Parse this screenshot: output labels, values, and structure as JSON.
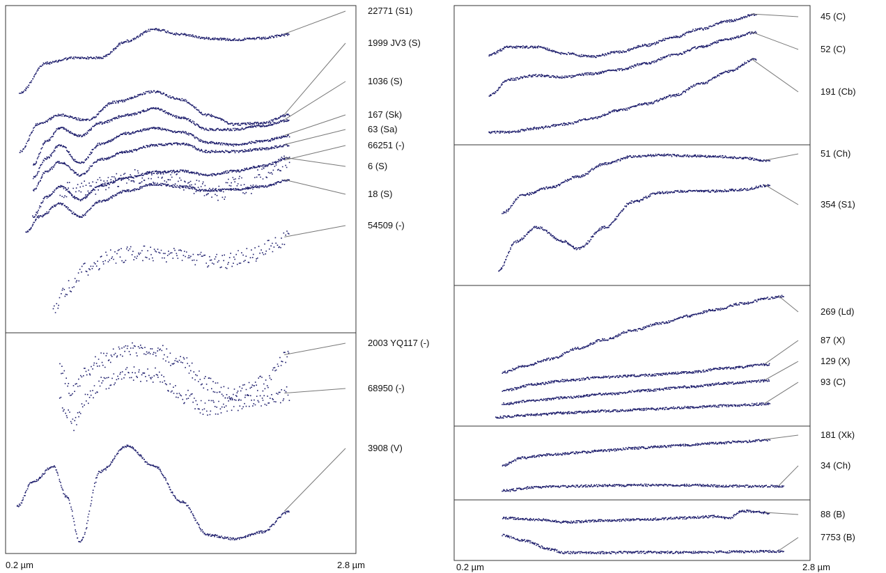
{
  "chart_data": [
    {
      "type": "line",
      "panel": "left-top",
      "xlim": [
        0.2,
        2.8
      ],
      "x_unit": "µm",
      "axis_start_label": "0.2 µm",
      "axis_end_label": "2.8 µm",
      "series": [
        {
          "name": "22771 (S1)",
          "x": [
            0.3,
            0.5,
            0.7,
            0.9,
            1.1,
            1.3,
            1.5,
            1.7,
            1.9,
            2.1,
            2.3
          ],
          "y": [
            0.45,
            0.68,
            0.72,
            0.72,
            0.85,
            0.94,
            0.9,
            0.87,
            0.86,
            0.87,
            0.9
          ]
        },
        {
          "name": "1999 JV3 (S)",
          "x": [
            0.3,
            0.45,
            0.6,
            0.8,
            1.0,
            1.3,
            1.5,
            1.7,
            1.9,
            2.1,
            2.3
          ],
          "y": [
            0.0,
            0.22,
            0.28,
            0.24,
            0.38,
            0.46,
            0.4,
            0.28,
            0.21,
            0.22,
            0.28
          ]
        },
        {
          "name": "1036 (S)",
          "x": [
            0.4,
            0.5,
            0.6,
            0.75,
            0.9,
            1.1,
            1.3,
            1.5,
            1.7,
            1.9,
            2.1,
            2.3
          ],
          "y": [
            -0.1,
            0.08,
            0.18,
            0.12,
            0.22,
            0.28,
            0.33,
            0.26,
            0.17,
            0.17,
            0.2,
            0.24
          ]
        },
        {
          "name": "167 (Sk)",
          "x": [
            0.4,
            0.5,
            0.6,
            0.75,
            0.9,
            1.1,
            1.3,
            1.5,
            1.7,
            1.9,
            2.1,
            2.3
          ],
          "y": [
            -0.2,
            -0.05,
            0.05,
            -0.09,
            0.06,
            0.14,
            0.18,
            0.15,
            0.07,
            0.05,
            0.08,
            0.12
          ]
        },
        {
          "name": "63 (Sa)",
          "x": [
            0.4,
            0.5,
            0.6,
            0.75,
            0.9,
            1.1,
            1.3,
            1.5,
            1.7,
            1.9,
            2.1,
            2.3
          ],
          "y": [
            -0.3,
            -0.15,
            -0.08,
            -0.18,
            -0.06,
            0.0,
            0.05,
            0.06,
            0.0,
            0.0,
            0.02,
            0.05
          ]
        },
        {
          "name": "66251 (-)",
          "x": [
            0.6,
            0.8,
            1.0,
            1.2,
            1.4,
            1.6,
            1.8,
            1.9,
            2.0,
            2.1,
            2.2,
            2.3
          ],
          "y": [
            -0.3,
            -0.28,
            -0.23,
            -0.19,
            -0.21,
            -0.27,
            -0.32,
            -0.22,
            -0.28,
            -0.16,
            -0.12,
            -0.07
          ]
        },
        {
          "name": "6 (S)",
          "x": [
            0.4,
            0.5,
            0.6,
            0.75,
            0.9,
            1.1,
            1.3,
            1.5,
            1.7,
            1.9,
            2.1,
            2.3
          ],
          "y": [
            -0.5,
            -0.35,
            -0.27,
            -0.37,
            -0.26,
            -0.2,
            -0.16,
            -0.15,
            -0.18,
            -0.15,
            -0.11,
            -0.05
          ]
        },
        {
          "name": "18 (S)",
          "x": [
            0.35,
            0.45,
            0.6,
            0.75,
            0.9,
            1.1,
            1.3,
            1.5,
            1.7,
            1.9,
            2.1,
            2.3
          ],
          "y": [
            -0.62,
            -0.5,
            -0.4,
            -0.5,
            -0.38,
            -0.3,
            -0.25,
            -0.27,
            -0.3,
            -0.29,
            -0.27,
            -0.22
          ]
        },
        {
          "name": "54509 (-)",
          "x": [
            0.55,
            0.65,
            0.8,
            1.0,
            1.2,
            1.4,
            1.6,
            1.8,
            2.0,
            2.2,
            2.3
          ],
          "y": [
            -1.2,
            -1.05,
            -0.9,
            -0.8,
            -0.78,
            -0.8,
            -0.82,
            -0.85,
            -0.8,
            -0.72,
            -0.66
          ]
        }
      ]
    },
    {
      "type": "line",
      "panel": "left-bottom",
      "xlim": [
        0.2,
        2.8
      ],
      "x_unit": "µm",
      "series": [
        {
          "name": "2003 YQ117 (-)",
          "x": [
            0.6,
            0.7,
            0.8,
            0.9,
            1.1,
            1.3,
            1.5,
            1.7,
            1.9,
            2.1,
            2.3
          ],
          "y": [
            0.75,
            0.55,
            0.72,
            0.85,
            0.95,
            0.97,
            0.82,
            0.62,
            0.52,
            0.62,
            0.9
          ]
        },
        {
          "name": "68950 (-)",
          "x": [
            0.6,
            0.7,
            0.8,
            0.9,
            1.1,
            1.3,
            1.5,
            1.7,
            1.9,
            2.1,
            2.3
          ],
          "y": [
            0.42,
            0.22,
            0.48,
            0.62,
            0.72,
            0.7,
            0.5,
            0.38,
            0.42,
            0.45,
            0.52
          ]
        },
        {
          "name": "3908 (V)",
          "x": [
            0.28,
            0.4,
            0.55,
            0.65,
            0.75,
            0.9,
            1.1,
            1.3,
            1.5,
            1.7,
            1.9,
            2.1,
            2.3
          ],
          "y": [
            -0.6,
            -0.35,
            -0.2,
            -0.5,
            -0.95,
            -0.25,
            0.0,
            -0.2,
            -0.55,
            -0.88,
            -0.92,
            -0.85,
            -0.65
          ]
        }
      ]
    },
    {
      "type": "line",
      "panel": "right-1",
      "xlim": [
        0.2,
        2.8
      ],
      "x_unit": "µm",
      "series": [
        {
          "name": "45 (C)",
          "x": [
            0.45,
            0.6,
            0.8,
            1.0,
            1.2,
            1.4,
            1.6,
            1.8,
            2.0,
            2.2,
            2.4
          ],
          "y": [
            0.4,
            0.5,
            0.5,
            0.42,
            0.38,
            0.44,
            0.52,
            0.62,
            0.72,
            0.82,
            0.9
          ]
        },
        {
          "name": "52 (C)",
          "x": [
            0.45,
            0.6,
            0.8,
            1.0,
            1.2,
            1.4,
            1.6,
            1.8,
            2.0,
            2.2,
            2.4
          ],
          "y": [
            -0.1,
            0.1,
            0.15,
            0.13,
            0.17,
            0.22,
            0.3,
            0.4,
            0.5,
            0.6,
            0.68
          ]
        },
        {
          "name": "191 (Cb)",
          "x": [
            0.45,
            0.6,
            0.8,
            1.0,
            1.2,
            1.4,
            1.6,
            1.8,
            2.0,
            2.2,
            2.4
          ],
          "y": [
            -0.55,
            -0.55,
            -0.5,
            -0.45,
            -0.38,
            -0.28,
            -0.2,
            -0.1,
            0.05,
            0.2,
            0.35
          ]
        }
      ]
    },
    {
      "type": "line",
      "panel": "right-2",
      "xlim": [
        0.2,
        2.8
      ],
      "x_unit": "µm",
      "series": [
        {
          "name": "51 (Ch)",
          "x": [
            0.55,
            0.7,
            0.9,
            1.1,
            1.3,
            1.5,
            1.7,
            1.9,
            2.1,
            2.3,
            2.5
          ],
          "y": [
            0.1,
            0.35,
            0.45,
            0.6,
            0.78,
            0.88,
            0.9,
            0.89,
            0.88,
            0.86,
            0.82
          ]
        },
        {
          "name": "354 (S1)",
          "x": [
            0.52,
            0.65,
            0.8,
            1.0,
            1.1,
            1.3,
            1.5,
            1.7,
            1.9,
            2.1,
            2.3,
            2.5
          ],
          "y": [
            -0.7,
            -0.3,
            -0.1,
            -0.3,
            -0.4,
            -0.1,
            0.25,
            0.38,
            0.4,
            0.4,
            0.42,
            0.48
          ]
        }
      ]
    },
    {
      "type": "line",
      "panel": "right-3",
      "xlim": [
        0.2,
        2.8
      ],
      "x_unit": "µm",
      "series": [
        {
          "name": "269 (Ld)",
          "x": [
            0.55,
            0.7,
            0.9,
            1.1,
            1.3,
            1.5,
            1.7,
            1.9,
            2.1,
            2.3,
            2.5,
            2.6
          ],
          "y": [
            0.05,
            0.12,
            0.2,
            0.32,
            0.42,
            0.52,
            0.6,
            0.68,
            0.75,
            0.82,
            0.88,
            0.9
          ]
        },
        {
          "name": "87 (X)",
          "x": [
            0.55,
            0.8,
            1.0,
            1.3,
            1.6,
            1.9,
            2.2,
            2.5
          ],
          "y": [
            -0.15,
            -0.08,
            -0.04,
            0.0,
            0.02,
            0.05,
            0.1,
            0.14
          ]
        },
        {
          "name": "129 (X)",
          "x": [
            0.55,
            0.8,
            1.0,
            1.3,
            1.6,
            1.9,
            2.2,
            2.5
          ],
          "y": [
            -0.3,
            -0.26,
            -0.23,
            -0.19,
            -0.15,
            -0.11,
            -0.07,
            -0.04
          ]
        },
        {
          "name": "93 (C)",
          "x": [
            0.5,
            0.8,
            1.0,
            1.3,
            1.6,
            1.9,
            2.2,
            2.5
          ],
          "y": [
            -0.45,
            -0.42,
            -0.4,
            -0.38,
            -0.36,
            -0.34,
            -0.32,
            -0.3
          ]
        }
      ]
    },
    {
      "type": "line",
      "panel": "right-4",
      "xlim": [
        0.2,
        2.8
      ],
      "x_unit": "µm",
      "series": [
        {
          "name": "181 (Xk)",
          "x": [
            0.55,
            0.7,
            0.9,
            1.1,
            1.3,
            1.5,
            1.7,
            1.9,
            2.1,
            2.3,
            2.5
          ],
          "y": [
            0.2,
            0.38,
            0.45,
            0.5,
            0.55,
            0.6,
            0.64,
            0.68,
            0.72,
            0.76,
            0.8
          ]
        },
        {
          "name": "34 (Ch)",
          "x": [
            0.55,
            0.8,
            1.0,
            1.3,
            1.6,
            1.9,
            2.2,
            2.5,
            2.6
          ],
          "y": [
            -0.4,
            -0.32,
            -0.3,
            -0.28,
            -0.27,
            -0.27,
            -0.29,
            -0.3,
            -0.3
          ]
        }
      ]
    },
    {
      "type": "line",
      "panel": "right-5",
      "xlim": [
        0.2,
        2.8
      ],
      "x_unit": "µm",
      "axis_start_label": "0.2 µm",
      "axis_end_label": "2.8 µm",
      "series": [
        {
          "name": "88 (B)",
          "x": [
            0.55,
            0.8,
            1.0,
            1.3,
            1.6,
            1.9,
            2.1,
            2.2,
            2.3,
            2.5
          ],
          "y": [
            0.6,
            0.55,
            0.48,
            0.52,
            0.56,
            0.6,
            0.64,
            0.58,
            0.8,
            0.74
          ]
        },
        {
          "name": "7753 (B)",
          "x": [
            0.55,
            0.7,
            0.9,
            1.0,
            1.3,
            1.6,
            1.9,
            2.2,
            2.5,
            2.6
          ],
          "y": [
            0.1,
            -0.05,
            -0.3,
            -0.4,
            -0.4,
            -0.39,
            -0.39,
            -0.38,
            -0.36,
            -0.36
          ]
        }
      ]
    }
  ],
  "colors": {
    "trace": "#1c1c6b",
    "frame": "#333333",
    "leader": "#777777",
    "label": "#111111"
  }
}
